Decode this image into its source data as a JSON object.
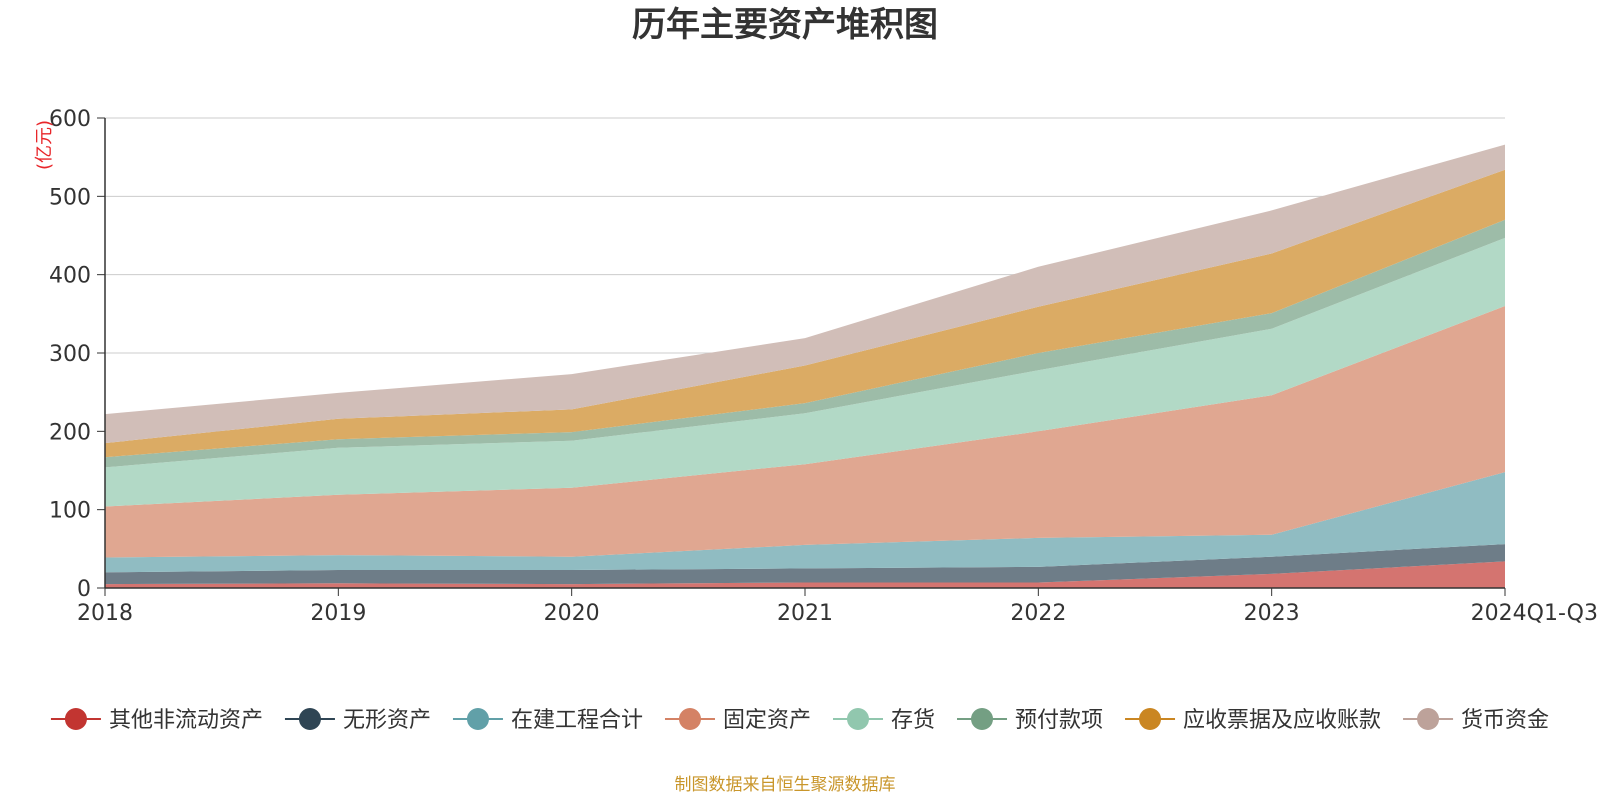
{
  "chart_data": {
    "type": "area",
    "stacked": true,
    "title": "历年主要资产堆积图",
    "unit_label": "(亿元)",
    "source": "制图数据来自恒生聚源数据库",
    "categories": [
      "2018",
      "2019",
      "2020",
      "2021",
      "2022",
      "2023",
      "2024Q1-Q3"
    ],
    "ylim": [
      0,
      600
    ],
    "yticks": [
      "0",
      "100",
      "200",
      "300",
      "400",
      "500",
      "600"
    ],
    "grid": true,
    "legend_position": "bottom",
    "series": [
      {
        "name": "其他非流动资产",
        "values": [
          5,
          6,
          5,
          7,
          7,
          18,
          34
        ],
        "color": "#c23531",
        "fill": "#d47470"
      },
      {
        "name": "无形资产",
        "values": [
          15,
          17,
          18,
          18,
          20,
          22,
          22
        ],
        "color": "#2f4554",
        "fill": "#6e7d88"
      },
      {
        "name": "在建工程合计",
        "values": [
          19,
          19,
          17,
          30,
          37,
          28,
          92
        ],
        "color": "#61a0a8",
        "fill": "#90bcc2"
      },
      {
        "name": "固定资产",
        "values": [
          65,
          77,
          88,
          103,
          136,
          178,
          212
        ],
        "color": "#d48265",
        "fill": "#e0a791"
      },
      {
        "name": "存货",
        "values": [
          50,
          60,
          60,
          65,
          78,
          85,
          87
        ],
        "color": "#91c7ae",
        "fill": "#b2d9c6"
      },
      {
        "name": "预付款项",
        "values": [
          13,
          11,
          11,
          13,
          22,
          20,
          23
        ],
        "color": "#749f83",
        "fill": "#9dbca8"
      },
      {
        "name": "应收票据及应收账款",
        "values": [
          18,
          26,
          29,
          48,
          59,
          76,
          64
        ],
        "color": "#ca8622",
        "fill": "#dbab64"
      },
      {
        "name": "货币资金",
        "values": [
          37,
          33,
          45,
          35,
          51,
          55,
          32
        ],
        "color": "#bda29a",
        "fill": "#d1beb8"
      }
    ]
  }
}
